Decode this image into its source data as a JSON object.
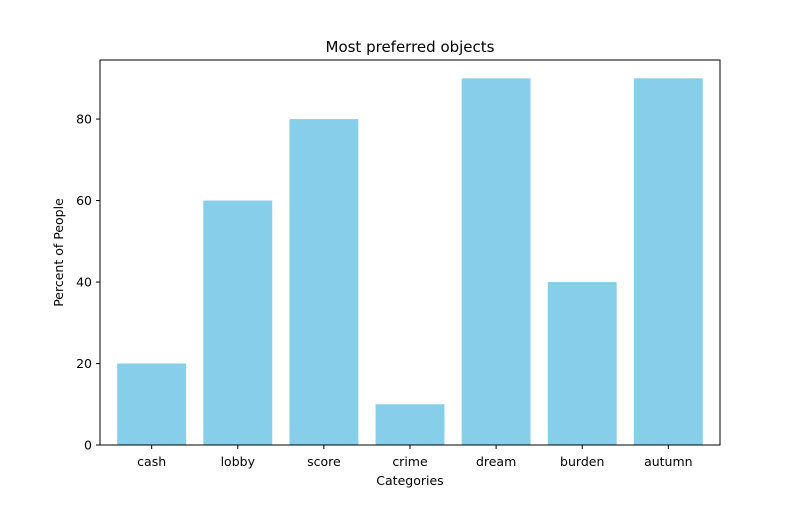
{
  "chart_data": {
    "type": "bar",
    "title": "Most preferred objects",
    "xlabel": "Categories",
    "ylabel": "Percent of People",
    "categories": [
      "cash",
      "lobby",
      "score",
      "crime",
      "dream",
      "burden",
      "autumn"
    ],
    "values": [
      20,
      60,
      80,
      10,
      90,
      40,
      90
    ],
    "yticks": [
      0,
      20,
      40,
      60,
      80
    ],
    "ylim": [
      0,
      94.5
    ],
    "grid": false,
    "bar_color": "#87ceeb"
  }
}
